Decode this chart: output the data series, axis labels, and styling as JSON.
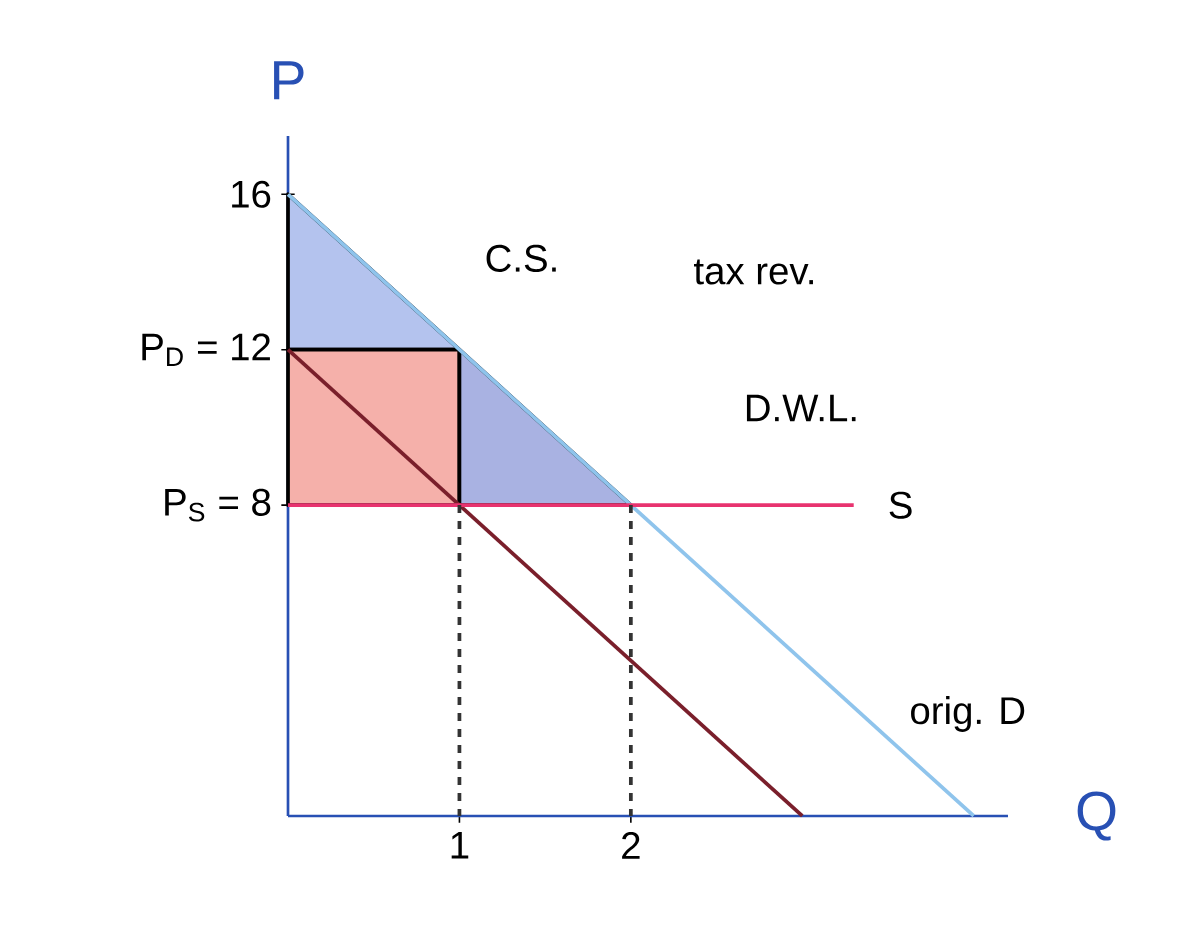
{
  "chart_data": {
    "type": "line",
    "xlabel": "Q",
    "ylabel": "P",
    "xlim": [
      0,
      4.2
    ],
    "ylim": [
      0,
      17.5
    ],
    "xticks": [
      1,
      2
    ],
    "yticks": [
      {
        "value": 8,
        "label": "P$_{S}$ = 8"
      },
      {
        "value": 12,
        "label": "P$_{D}$ = 12"
      },
      16
    ],
    "series": [
      {
        "type": "area",
        "color": "#b4c3ee",
        "x": [
          0,
          0,
          1
        ],
        "values": [
          16,
          12,
          12
        ]
      },
      {
        "type": "area",
        "color": "#f5b0aa",
        "x": [
          0,
          0,
          1,
          1
        ],
        "values": [
          8,
          12,
          12,
          8
        ]
      },
      {
        "type": "area",
        "color": "#a9b2e2",
        "x": [
          1,
          1,
          2
        ],
        "values": [
          8,
          12,
          8
        ]
      },
      {
        "color": "#8fc4ec",
        "x": [
          0,
          4
        ],
        "values": [
          16,
          0
        ]
      },
      {
        "color": "#7a1f2b",
        "x": [
          0,
          3
        ],
        "values": [
          12,
          0
        ]
      },
      {
        "color": "#e8336f",
        "x": [
          0,
          3.3
        ],
        "values": [
          8,
          8
        ]
      },
      {
        "color": "#333333",
        "line_style": "dashed",
        "x": [
          1,
          1
        ],
        "values": [
          8,
          0
        ]
      },
      {
        "color": "#333333",
        "line_style": "dashed",
        "x": [
          2,
          2
        ],
        "values": [
          8,
          0
        ]
      }
    ],
    "annotations": [
      "C.S.",
      "tax rev.",
      "D.W.L.",
      "S",
      "orig. D"
    ]
  }
}
